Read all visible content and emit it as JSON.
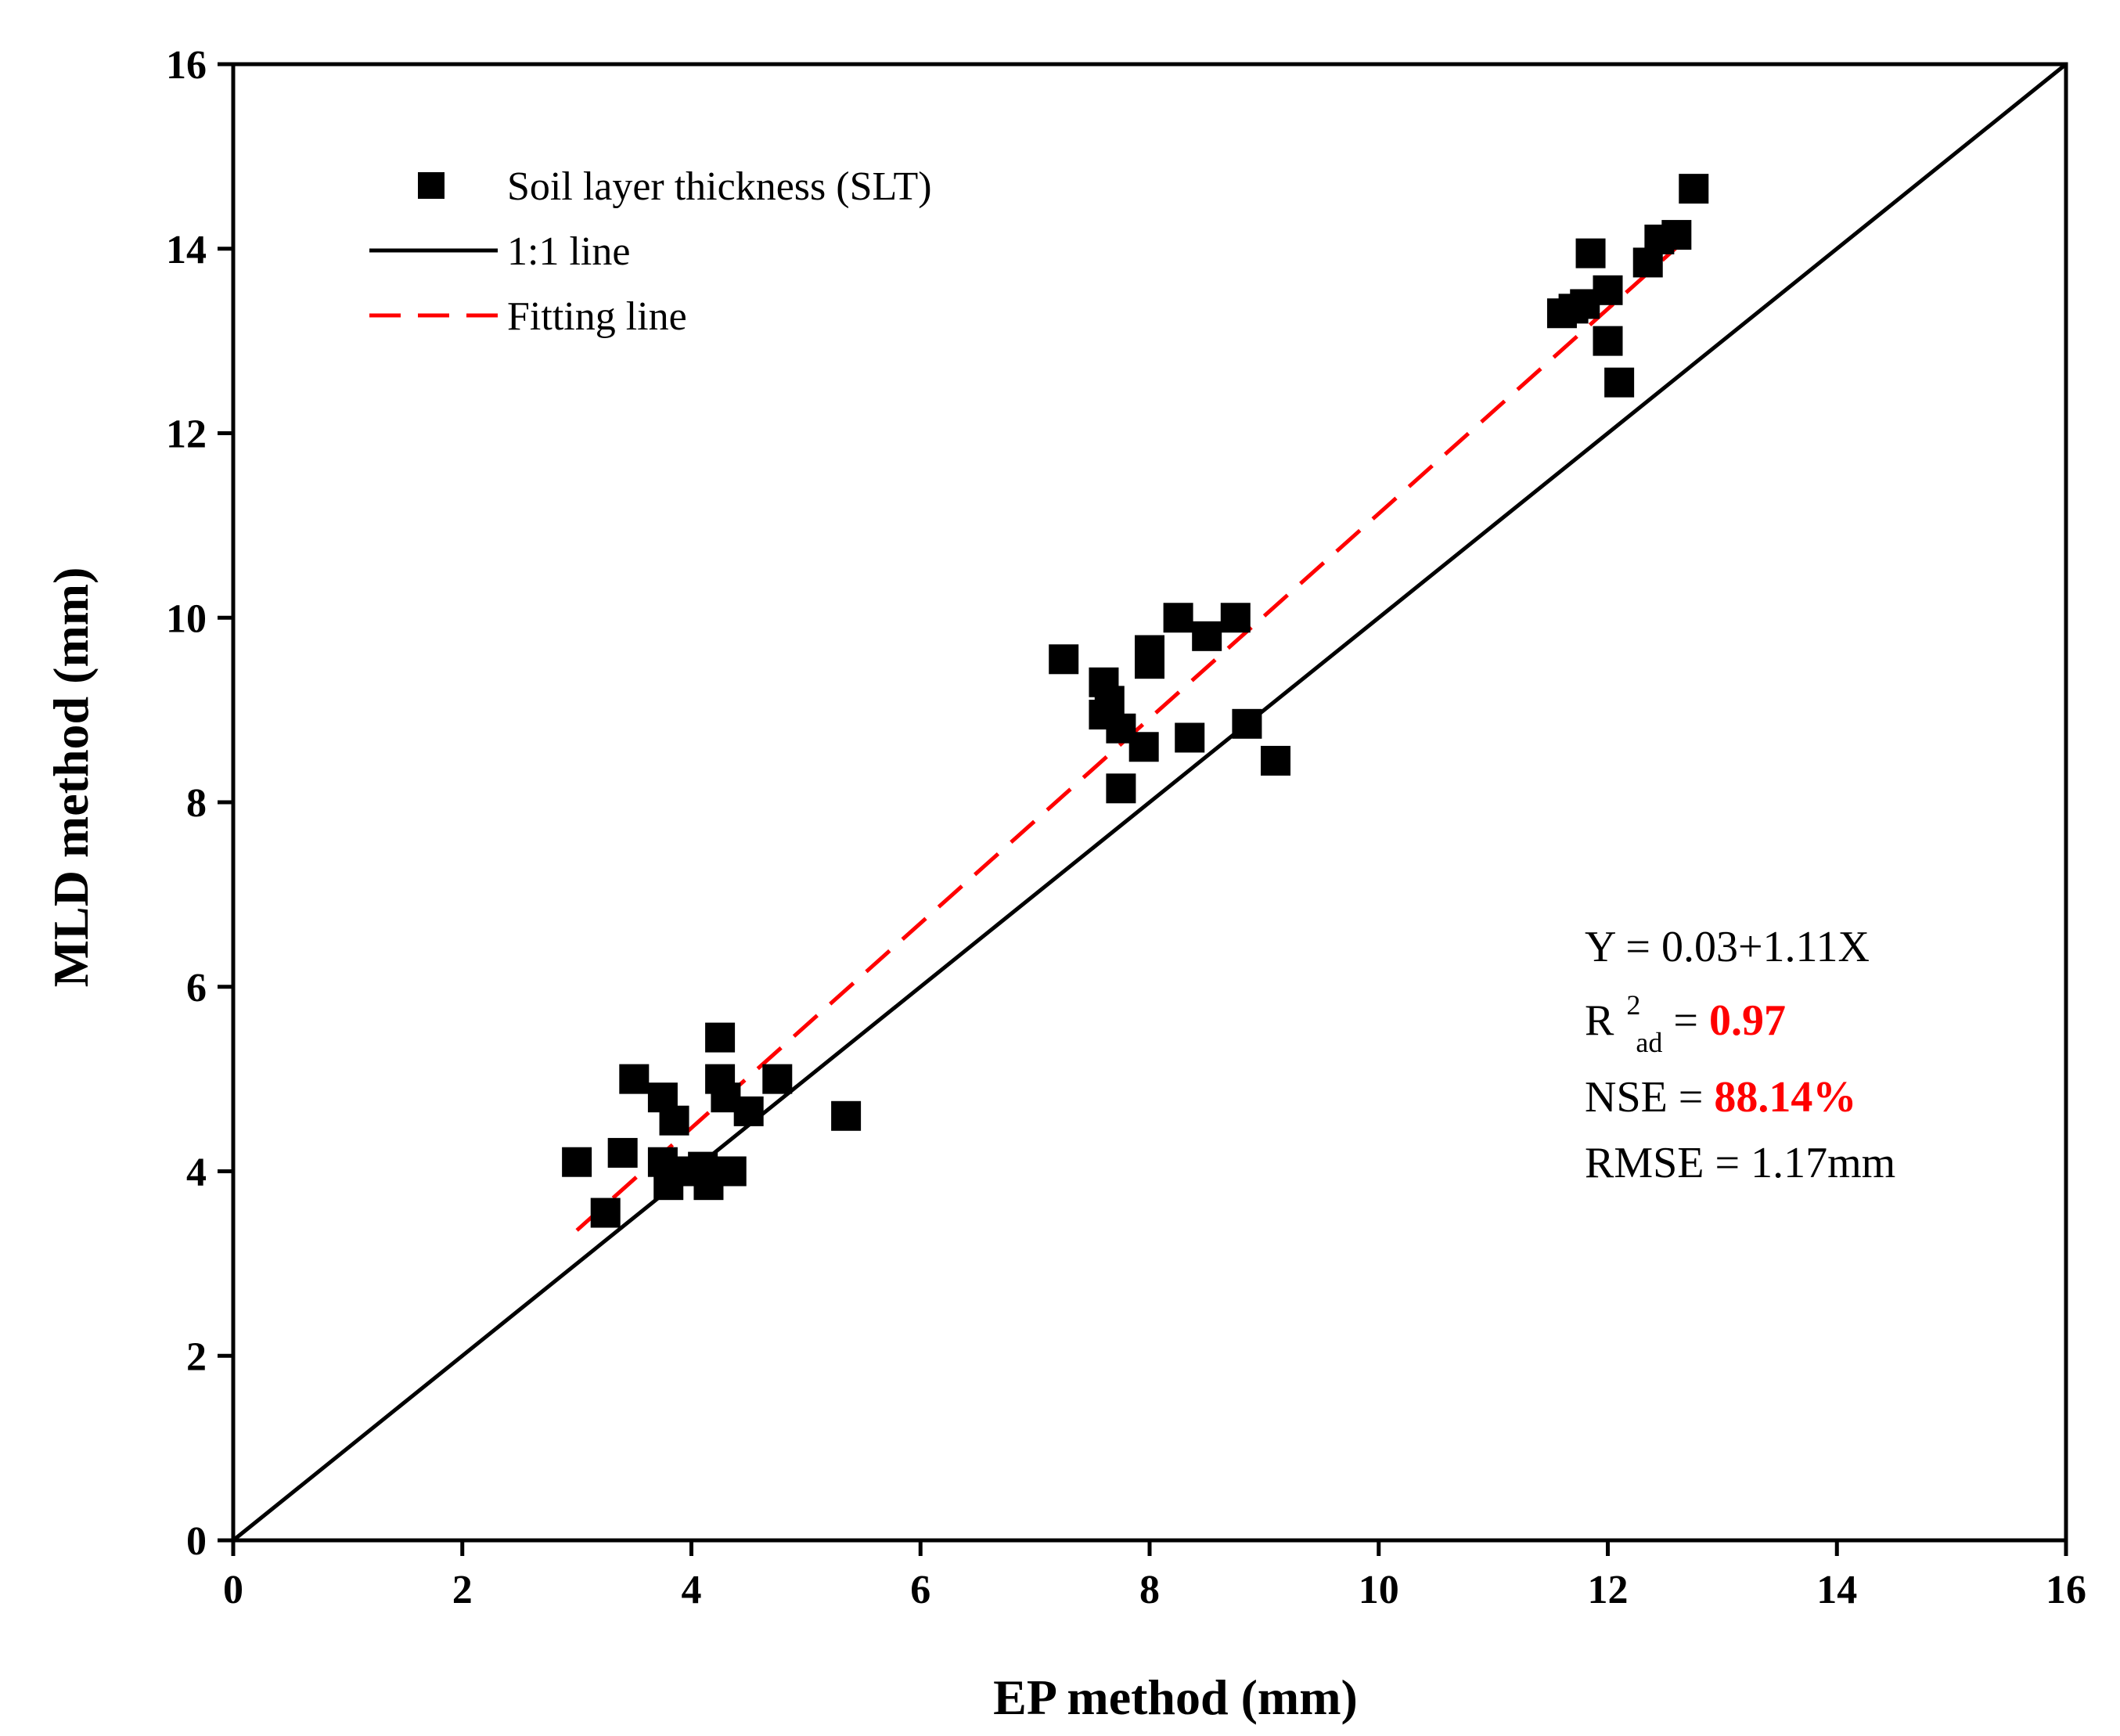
{
  "chart_data": {
    "type": "scatter",
    "xlabel": "EP method (mm)",
    "ylabel": "MLD method (mm)",
    "xlim": [
      0,
      16
    ],
    "ylim": [
      0,
      16
    ],
    "xticks": [
      "0",
      "2",
      "4",
      "6",
      "8",
      "10",
      "12",
      "14",
      "16"
    ],
    "yticks": [
      "0",
      "2",
      "4",
      "6",
      "8",
      "10",
      "12",
      "14",
      "16"
    ],
    "grid": false,
    "legend": {
      "placement": "top-left",
      "entries": [
        {
          "label": "Soil layer thickness (SLT)",
          "kind": "square-marker",
          "color": "#000000"
        },
        {
          "label": "1:1 line",
          "kind": "solid-line",
          "color": "#000000"
        },
        {
          "label": "Fitting line",
          "kind": "dashed-line",
          "color": "#ff0000"
        }
      ]
    },
    "series": [
      {
        "name": "Soil layer thickness (SLT)",
        "marker": "square",
        "color": "#000000",
        "points": [
          [
            3.0,
            4.1
          ],
          [
            3.25,
            3.55
          ],
          [
            3.4,
            4.2
          ],
          [
            3.5,
            5.0
          ],
          [
            3.75,
            4.8
          ],
          [
            3.75,
            4.1
          ],
          [
            3.8,
            3.85
          ],
          [
            3.85,
            4.55
          ],
          [
            3.95,
            4.0
          ],
          [
            4.1,
            4.05
          ],
          [
            4.15,
            3.85
          ],
          [
            4.25,
            5.45
          ],
          [
            4.25,
            5.0
          ],
          [
            4.3,
            4.8
          ],
          [
            4.35,
            4.0
          ],
          [
            4.5,
            4.65
          ],
          [
            4.75,
            5.0
          ],
          [
            5.35,
            4.6
          ],
          [
            7.25,
            9.55
          ],
          [
            7.6,
            9.3
          ],
          [
            7.65,
            9.1
          ],
          [
            7.6,
            8.95
          ],
          [
            7.75,
            8.8
          ],
          [
            7.75,
            8.15
          ],
          [
            7.95,
            8.6
          ],
          [
            8.0,
            9.65
          ],
          [
            8.0,
            9.5
          ],
          [
            8.25,
            10.0
          ],
          [
            8.35,
            8.7
          ],
          [
            8.5,
            9.8
          ],
          [
            8.75,
            10.0
          ],
          [
            8.85,
            8.85
          ],
          [
            9.1,
            8.45
          ],
          [
            11.6,
            13.3
          ],
          [
            11.7,
            13.35
          ],
          [
            11.8,
            13.4
          ],
          [
            11.85,
            13.95
          ],
          [
            12.0,
            13.55
          ],
          [
            12.0,
            13.0
          ],
          [
            12.1,
            12.55
          ],
          [
            12.35,
            13.85
          ],
          [
            12.45,
            14.1
          ],
          [
            12.6,
            14.15
          ],
          [
            12.75,
            14.65
          ]
        ]
      }
    ],
    "lines": [
      {
        "name": "1:1 line",
        "style": "solid",
        "color": "#000000",
        "x": [
          0,
          16
        ],
        "y": [
          0,
          16
        ]
      },
      {
        "name": "Fitting line",
        "style": "dashed",
        "color": "#ff0000",
        "x": [
          3.0,
          12.75
        ],
        "y": [
          3.36,
          14.18
        ]
      }
    ],
    "annotations": {
      "equation": "Y = 0.03+1.11X",
      "r2_label": "R",
      "r2_sup": "2",
      "r2_sub": "ad",
      "r2_eq": " = ",
      "r2_value": "0.97",
      "nse_label": "NSE = ",
      "nse_value": "88.14%",
      "rmse": "RMSE = 1.17mm"
    }
  }
}
